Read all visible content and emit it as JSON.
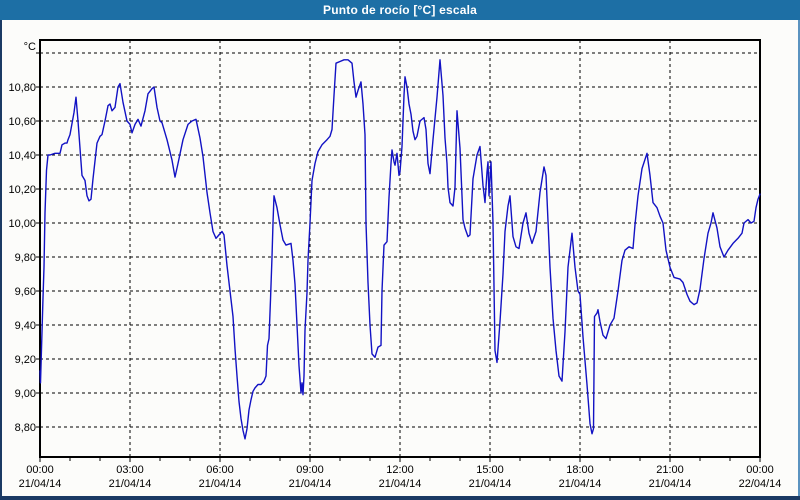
{
  "window": {
    "title": "Punto de rocío [°C] escala"
  },
  "colors": {
    "titlebar": "#1d6fa5",
    "title_text": "#ffffff",
    "window_border": "#1b3a64",
    "background": "#fcfcfa",
    "grid": "#000000",
    "frame": "#000000",
    "line": "#1212c4",
    "label_text": "#000000"
  },
  "chart_data": {
    "type": "line",
    "title": "Punto de rocío [°C] escala",
    "legend": "none",
    "grid": "dashed-black-both-axes",
    "y_axis": {
      "unit": "°C",
      "max_gridline": 11.0,
      "min_gridline": 8.8,
      "step": 0.2,
      "decimal_separator": "comma",
      "ticks": [
        {
          "value": 10.8,
          "label": "10,80"
        },
        {
          "value": 10.6,
          "label": "10,60"
        },
        {
          "value": 10.4,
          "label": "10,40"
        },
        {
          "value": 10.2,
          "label": "10,20"
        },
        {
          "value": 10.0,
          "label": "10,00"
        },
        {
          "value": 9.8,
          "label": "9,80"
        },
        {
          "value": 9.6,
          "label": "9,60"
        },
        {
          "value": 9.4,
          "label": "9,40"
        },
        {
          "value": 9.2,
          "label": "9,20"
        },
        {
          "value": 9.0,
          "label": "9,00"
        },
        {
          "value": 8.8,
          "label": "8,80"
        }
      ]
    },
    "x_axis": {
      "total_minutes": 1440,
      "minor_tick_every_minutes": 60,
      "gridline_minutes": [
        180,
        360,
        540,
        720,
        900,
        1080,
        1260
      ],
      "major_ticks": [
        {
          "minutes": 0,
          "time": "00:00",
          "date": "21/04/14"
        },
        {
          "minutes": 180,
          "time": "03:00",
          "date": "21/04/14"
        },
        {
          "minutes": 360,
          "time": "06:00",
          "date": "21/04/14"
        },
        {
          "minutes": 540,
          "time": "09:00",
          "date": "21/04/14"
        },
        {
          "minutes": 720,
          "time": "12:00",
          "date": "21/04/14"
        },
        {
          "minutes": 900,
          "time": "15:00",
          "date": "21/04/14"
        },
        {
          "minutes": 1080,
          "time": "18:00",
          "date": "21/04/14"
        },
        {
          "minutes": 1260,
          "time": "21:00",
          "date": "21/04/14"
        },
        {
          "minutes": 1440,
          "time": "00:00",
          "date": "22/04/14"
        }
      ]
    },
    "series": [
      {
        "name": "Punto de rocío",
        "color": "#1212c4",
        "points": [
          [
            0,
            9.13
          ],
          [
            1,
            9.06
          ],
          [
            3,
            9.26
          ],
          [
            6,
            9.56
          ],
          [
            8,
            9.74
          ],
          [
            10,
            10.06
          ],
          [
            13,
            10.31
          ],
          [
            16,
            10.4
          ],
          [
            20,
            10.4
          ],
          [
            30,
            10.41
          ],
          [
            40,
            10.41
          ],
          [
            44,
            10.46
          ],
          [
            50,
            10.47
          ],
          [
            54,
            10.47
          ],
          [
            56,
            10.49
          ],
          [
            60,
            10.52
          ],
          [
            68,
            10.65
          ],
          [
            72,
            10.74
          ],
          [
            76,
            10.6
          ],
          [
            84,
            10.28
          ],
          [
            90,
            10.25
          ],
          [
            94,
            10.16
          ],
          [
            98,
            10.13
          ],
          [
            102,
            10.14
          ],
          [
            106,
            10.26
          ],
          [
            114,
            10.47
          ],
          [
            120,
            10.51
          ],
          [
            124,
            10.52
          ],
          [
            130,
            10.6
          ],
          [
            136,
            10.69
          ],
          [
            140,
            10.7
          ],
          [
            144,
            10.66
          ],
          [
            150,
            10.68
          ],
          [
            156,
            10.8
          ],
          [
            160,
            10.82
          ],
          [
            166,
            10.71
          ],
          [
            174,
            10.6
          ],
          [
            180,
            10.58
          ],
          [
            184,
            10.53
          ],
          [
            190,
            10.58
          ],
          [
            196,
            10.61
          ],
          [
            202,
            10.57
          ],
          [
            210,
            10.66
          ],
          [
            216,
            10.76
          ],
          [
            224,
            10.79
          ],
          [
            228,
            10.8
          ],
          [
            234,
            10.68
          ],
          [
            240,
            10.6
          ],
          [
            244,
            10.59
          ],
          [
            254,
            10.49
          ],
          [
            264,
            10.37
          ],
          [
            270,
            10.27
          ],
          [
            276,
            10.35
          ],
          [
            286,
            10.49
          ],
          [
            296,
            10.58
          ],
          [
            304,
            10.6
          ],
          [
            312,
            10.61
          ],
          [
            320,
            10.5
          ],
          [
            326,
            10.39
          ],
          [
            334,
            10.18
          ],
          [
            340,
            10.06
          ],
          [
            346,
            9.95
          ],
          [
            352,
            9.91
          ],
          [
            358,
            9.93
          ],
          [
            364,
            9.95
          ],
          [
            368,
            9.93
          ],
          [
            374,
            9.75
          ],
          [
            380,
            9.6
          ],
          [
            386,
            9.45
          ],
          [
            390,
            9.26
          ],
          [
            394,
            9.1
          ],
          [
            398,
            8.95
          ],
          [
            402,
            8.85
          ],
          [
            406,
            8.78
          ],
          [
            410,
            8.73
          ],
          [
            414,
            8.79
          ],
          [
            418,
            8.9
          ],
          [
            422,
            8.96
          ],
          [
            426,
            9.01
          ],
          [
            430,
            9.03
          ],
          [
            436,
            9.05
          ],
          [
            442,
            9.05
          ],
          [
            448,
            9.07
          ],
          [
            452,
            9.1
          ],
          [
            455,
            9.28
          ],
          [
            458,
            9.32
          ],
          [
            461,
            9.55
          ],
          [
            464,
            9.8
          ],
          [
            466,
            10.0
          ],
          [
            468,
            10.16
          ],
          [
            474,
            10.09
          ],
          [
            480,
            9.99
          ],
          [
            486,
            9.9
          ],
          [
            492,
            9.87
          ],
          [
            502,
            9.88
          ],
          [
            506,
            9.78
          ],
          [
            510,
            9.64
          ],
          [
            514,
            9.4
          ],
          [
            518,
            9.16
          ],
          [
            522,
            9.0
          ],
          [
            524,
            9.06
          ],
          [
            526,
            8.99
          ],
          [
            528,
            9.1
          ],
          [
            530,
            9.37
          ],
          [
            534,
            9.59
          ],
          [
            536,
            9.78
          ],
          [
            540,
            10.0
          ],
          [
            544,
            10.25
          ],
          [
            550,
            10.35
          ],
          [
            556,
            10.42
          ],
          [
            564,
            10.46
          ],
          [
            574,
            10.49
          ],
          [
            580,
            10.51
          ],
          [
            584,
            10.55
          ],
          [
            588,
            10.75
          ],
          [
            592,
            10.94
          ],
          [
            600,
            10.95
          ],
          [
            608,
            10.96
          ],
          [
            616,
            10.96
          ],
          [
            624,
            10.94
          ],
          [
            628,
            10.83
          ],
          [
            632,
            10.74
          ],
          [
            636,
            10.78
          ],
          [
            642,
            10.83
          ],
          [
            646,
            10.7
          ],
          [
            650,
            10.52
          ],
          [
            652,
            10.0
          ],
          [
            656,
            9.65
          ],
          [
            660,
            9.4
          ],
          [
            664,
            9.23
          ],
          [
            670,
            9.21
          ],
          [
            676,
            9.27
          ],
          [
            682,
            9.28
          ],
          [
            684,
            9.6
          ],
          [
            688,
            9.87
          ],
          [
            694,
            9.89
          ],
          [
            698,
            10.15
          ],
          [
            702,
            10.35
          ],
          [
            704,
            10.43
          ],
          [
            708,
            10.36
          ],
          [
            710,
            10.34
          ],
          [
            714,
            10.41
          ],
          [
            718,
            10.28
          ],
          [
            720,
            10.3
          ],
          [
            724,
            10.45
          ],
          [
            728,
            10.75
          ],
          [
            730,
            10.86
          ],
          [
            734,
            10.8
          ],
          [
            738,
            10.7
          ],
          [
            742,
            10.64
          ],
          [
            746,
            10.54
          ],
          [
            750,
            10.49
          ],
          [
            754,
            10.51
          ],
          [
            760,
            10.6
          ],
          [
            768,
            10.62
          ],
          [
            772,
            10.55
          ],
          [
            776,
            10.35
          ],
          [
            780,
            10.29
          ],
          [
            786,
            10.49
          ],
          [
            794,
            10.74
          ],
          [
            800,
            10.96
          ],
          [
            806,
            10.75
          ],
          [
            810,
            10.5
          ],
          [
            814,
            10.35
          ],
          [
            816,
            10.21
          ],
          [
            820,
            10.12
          ],
          [
            826,
            10.1
          ],
          [
            830,
            10.21
          ],
          [
            834,
            10.66
          ],
          [
            840,
            10.44
          ],
          [
            846,
            10.02
          ],
          [
            850,
            9.97
          ],
          [
            856,
            9.92
          ],
          [
            860,
            9.93
          ],
          [
            866,
            10.26
          ],
          [
            874,
            10.4
          ],
          [
            880,
            10.45
          ],
          [
            886,
            10.22
          ],
          [
            890,
            10.12
          ],
          [
            894,
            10.3
          ],
          [
            896,
            10.36
          ],
          [
            898,
            10.16
          ],
          [
            902,
            10.36
          ],
          [
            906,
            10.0
          ],
          [
            910,
            9.25
          ],
          [
            914,
            9.18
          ],
          [
            920,
            9.42
          ],
          [
            926,
            9.7
          ],
          [
            930,
            9.95
          ],
          [
            936,
            10.1
          ],
          [
            940,
            10.16
          ],
          [
            946,
            9.92
          ],
          [
            952,
            9.86
          ],
          [
            958,
            9.85
          ],
          [
            966,
            10.0
          ],
          [
            972,
            10.06
          ],
          [
            978,
            9.94
          ],
          [
            984,
            9.88
          ],
          [
            992,
            9.95
          ],
          [
            1000,
            10.18
          ],
          [
            1008,
            10.33
          ],
          [
            1012,
            10.28
          ],
          [
            1020,
            9.74
          ],
          [
            1026,
            9.44
          ],
          [
            1032,
            9.25
          ],
          [
            1038,
            9.1
          ],
          [
            1044,
            9.07
          ],
          [
            1050,
            9.36
          ],
          [
            1056,
            9.74
          ],
          [
            1064,
            9.94
          ],
          [
            1070,
            9.74
          ],
          [
            1076,
            9.6
          ],
          [
            1080,
            9.58
          ],
          [
            1086,
            9.33
          ],
          [
            1094,
            9.05
          ],
          [
            1100,
            8.82
          ],
          [
            1104,
            8.76
          ],
          [
            1107,
            8.79
          ],
          [
            1109,
            9.45
          ],
          [
            1114,
            9.47
          ],
          [
            1116,
            9.49
          ],
          [
            1120,
            9.42
          ],
          [
            1126,
            9.34
          ],
          [
            1132,
            9.32
          ],
          [
            1140,
            9.4
          ],
          [
            1148,
            9.44
          ],
          [
            1156,
            9.6
          ],
          [
            1164,
            9.78
          ],
          [
            1170,
            9.84
          ],
          [
            1178,
            9.86
          ],
          [
            1186,
            9.85
          ],
          [
            1190,
            9.99
          ],
          [
            1196,
            10.16
          ],
          [
            1204,
            10.32
          ],
          [
            1214,
            10.41
          ],
          [
            1220,
            10.28
          ],
          [
            1226,
            10.12
          ],
          [
            1234,
            10.09
          ],
          [
            1240,
            10.04
          ],
          [
            1246,
            10.0
          ],
          [
            1252,
            9.84
          ],
          [
            1260,
            9.74
          ],
          [
            1268,
            9.68
          ],
          [
            1280,
            9.67
          ],
          [
            1286,
            9.65
          ],
          [
            1294,
            9.58
          ],
          [
            1300,
            9.54
          ],
          [
            1308,
            9.52
          ],
          [
            1314,
            9.53
          ],
          [
            1320,
            9.61
          ],
          [
            1328,
            9.79
          ],
          [
            1336,
            9.94
          ],
          [
            1342,
            10.0
          ],
          [
            1346,
            10.06
          ],
          [
            1354,
            9.97
          ],
          [
            1360,
            9.86
          ],
          [
            1368,
            9.8
          ],
          [
            1376,
            9.84
          ],
          [
            1386,
            9.88
          ],
          [
            1396,
            9.91
          ],
          [
            1404,
            9.94
          ],
          [
            1408,
            10.0
          ],
          [
            1416,
            10.02
          ],
          [
            1422,
            10.0
          ],
          [
            1428,
            10.01
          ],
          [
            1432,
            10.09
          ],
          [
            1436,
            10.14
          ],
          [
            1440,
            10.17
          ]
        ]
      }
    ]
  }
}
